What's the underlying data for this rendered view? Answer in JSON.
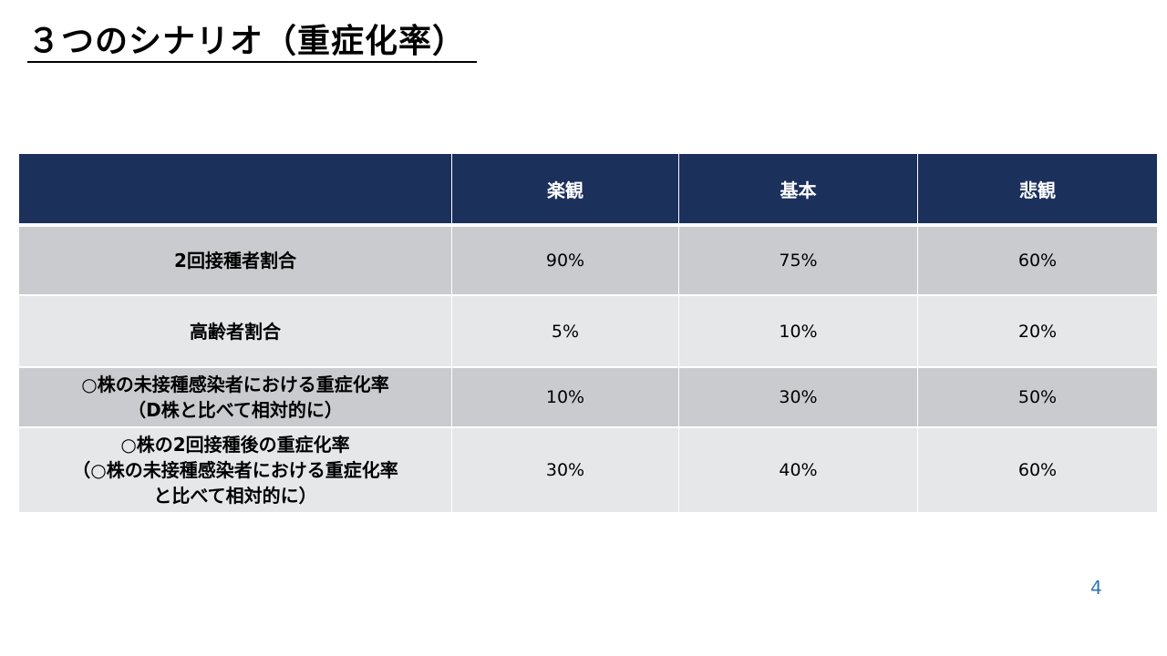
{
  "slide": {
    "title": "３つのシナリオ（重症化率）",
    "page_number": "4"
  },
  "table": {
    "headers": [
      "",
      "楽観",
      "基本",
      "悲観"
    ],
    "rows": [
      {
        "label": "2回接種者割合",
        "values": [
          "90%",
          "75%",
          "60%"
        ]
      },
      {
        "label": "高齢者割合",
        "values": [
          "5%",
          "10%",
          "20%"
        ]
      },
      {
        "label_lines": [
          "○株の未接種感染者における重症化率",
          "（D株と比べて相対的に）"
        ],
        "values": [
          "10%",
          "30%",
          "50%"
        ]
      },
      {
        "label_lines": [
          "○株の2回接種後の重症化率",
          "（○株の未接種感染者における重症化率",
          "と比べて相対的に）"
        ],
        "values": [
          "30%",
          "40%",
          "60%"
        ]
      }
    ]
  },
  "colors": {
    "header_bg": "#1c305c",
    "row_dark_bg": "#cacbcf",
    "row_light_bg": "#e6e7e9",
    "page_number": "#2e75b6"
  }
}
